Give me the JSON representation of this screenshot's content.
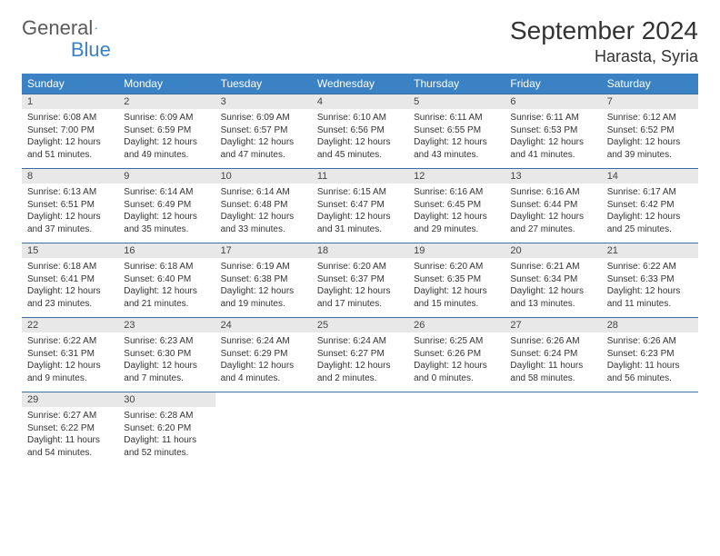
{
  "logo": {
    "text1": "General",
    "text2": "Blue"
  },
  "title": "September 2024",
  "location": "Harasta, Syria",
  "colors": {
    "header_bg": "#3b82c4",
    "daynum_bg": "#e8e8e8",
    "row_border": "#3b6fa0",
    "text": "#333333",
    "logo_gray": "#5a5a5a",
    "logo_blue": "#3b82c4"
  },
  "day_names": [
    "Sunday",
    "Monday",
    "Tuesday",
    "Wednesday",
    "Thursday",
    "Friday",
    "Saturday"
  ],
  "days": [
    {
      "n": "1",
      "sr": "6:08 AM",
      "ss": "7:00 PM",
      "dl": "12 hours and 51 minutes."
    },
    {
      "n": "2",
      "sr": "6:09 AM",
      "ss": "6:59 PM",
      "dl": "12 hours and 49 minutes."
    },
    {
      "n": "3",
      "sr": "6:09 AM",
      "ss": "6:57 PM",
      "dl": "12 hours and 47 minutes."
    },
    {
      "n": "4",
      "sr": "6:10 AM",
      "ss": "6:56 PM",
      "dl": "12 hours and 45 minutes."
    },
    {
      "n": "5",
      "sr": "6:11 AM",
      "ss": "6:55 PM",
      "dl": "12 hours and 43 minutes."
    },
    {
      "n": "6",
      "sr": "6:11 AM",
      "ss": "6:53 PM",
      "dl": "12 hours and 41 minutes."
    },
    {
      "n": "7",
      "sr": "6:12 AM",
      "ss": "6:52 PM",
      "dl": "12 hours and 39 minutes."
    },
    {
      "n": "8",
      "sr": "6:13 AM",
      "ss": "6:51 PM",
      "dl": "12 hours and 37 minutes."
    },
    {
      "n": "9",
      "sr": "6:14 AM",
      "ss": "6:49 PM",
      "dl": "12 hours and 35 minutes."
    },
    {
      "n": "10",
      "sr": "6:14 AM",
      "ss": "6:48 PM",
      "dl": "12 hours and 33 minutes."
    },
    {
      "n": "11",
      "sr": "6:15 AM",
      "ss": "6:47 PM",
      "dl": "12 hours and 31 minutes."
    },
    {
      "n": "12",
      "sr": "6:16 AM",
      "ss": "6:45 PM",
      "dl": "12 hours and 29 minutes."
    },
    {
      "n": "13",
      "sr": "6:16 AM",
      "ss": "6:44 PM",
      "dl": "12 hours and 27 minutes."
    },
    {
      "n": "14",
      "sr": "6:17 AM",
      "ss": "6:42 PM",
      "dl": "12 hours and 25 minutes."
    },
    {
      "n": "15",
      "sr": "6:18 AM",
      "ss": "6:41 PM",
      "dl": "12 hours and 23 minutes."
    },
    {
      "n": "16",
      "sr": "6:18 AM",
      "ss": "6:40 PM",
      "dl": "12 hours and 21 minutes."
    },
    {
      "n": "17",
      "sr": "6:19 AM",
      "ss": "6:38 PM",
      "dl": "12 hours and 19 minutes."
    },
    {
      "n": "18",
      "sr": "6:20 AM",
      "ss": "6:37 PM",
      "dl": "12 hours and 17 minutes."
    },
    {
      "n": "19",
      "sr": "6:20 AM",
      "ss": "6:35 PM",
      "dl": "12 hours and 15 minutes."
    },
    {
      "n": "20",
      "sr": "6:21 AM",
      "ss": "6:34 PM",
      "dl": "12 hours and 13 minutes."
    },
    {
      "n": "21",
      "sr": "6:22 AM",
      "ss": "6:33 PM",
      "dl": "12 hours and 11 minutes."
    },
    {
      "n": "22",
      "sr": "6:22 AM",
      "ss": "6:31 PM",
      "dl": "12 hours and 9 minutes."
    },
    {
      "n": "23",
      "sr": "6:23 AM",
      "ss": "6:30 PM",
      "dl": "12 hours and 7 minutes."
    },
    {
      "n": "24",
      "sr": "6:24 AM",
      "ss": "6:29 PM",
      "dl": "12 hours and 4 minutes."
    },
    {
      "n": "25",
      "sr": "6:24 AM",
      "ss": "6:27 PM",
      "dl": "12 hours and 2 minutes."
    },
    {
      "n": "26",
      "sr": "6:25 AM",
      "ss": "6:26 PM",
      "dl": "12 hours and 0 minutes."
    },
    {
      "n": "27",
      "sr": "6:26 AM",
      "ss": "6:24 PM",
      "dl": "11 hours and 58 minutes."
    },
    {
      "n": "28",
      "sr": "6:26 AM",
      "ss": "6:23 PM",
      "dl": "11 hours and 56 minutes."
    },
    {
      "n": "29",
      "sr": "6:27 AM",
      "ss": "6:22 PM",
      "dl": "11 hours and 54 minutes."
    },
    {
      "n": "30",
      "sr": "6:28 AM",
      "ss": "6:20 PM",
      "dl": "11 hours and 52 minutes."
    }
  ],
  "labels": {
    "sunrise": "Sunrise:",
    "sunset": "Sunset:",
    "daylight": "Daylight:"
  }
}
